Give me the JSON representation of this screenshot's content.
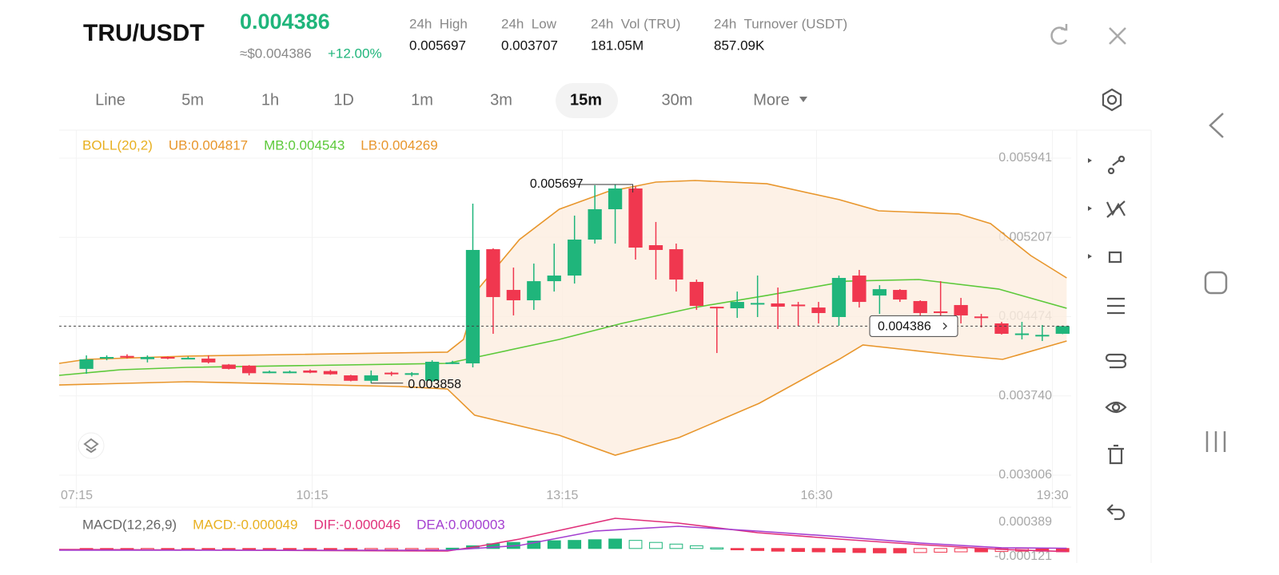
{
  "header": {
    "pair": "TRU/USDT",
    "price": "0.004386",
    "usd_price": "≈$0.004386",
    "change": "+12.00%",
    "stats": [
      {
        "label": "24h  High",
        "value": "0.005697"
      },
      {
        "label": "24h  Low",
        "value": "0.003707"
      },
      {
        "label": "24h  Vol (TRU)",
        "value": "181.05M"
      },
      {
        "label": "24h  Turnover (USDT)",
        "value": "857.09K"
      }
    ]
  },
  "timeframes": [
    {
      "label": "Line"
    },
    {
      "label": "5m"
    },
    {
      "label": "1h"
    },
    {
      "label": "1D"
    },
    {
      "label": "1m"
    },
    {
      "label": "3m"
    },
    {
      "label": "15m",
      "active": true
    },
    {
      "label": "30m"
    },
    {
      "label": "More"
    }
  ],
  "chart_data": [
    {
      "type": "candlestick",
      "title": "BOLL(20,2)",
      "title_color": "#e8b020",
      "up_color": "#1fb57b",
      "down_color": "#f0374f",
      "grid": true,
      "xlim": [
        -1.34,
        48.42
      ],
      "ylim": [
        0.00291,
        0.006185
      ],
      "xticks": [
        {
          "value": -0.5,
          "label": "07:15"
        },
        {
          "value": 11.1,
          "label": "10:15"
        },
        {
          "value": 23.4,
          "label": "13:15"
        },
        {
          "value": 35.9,
          "label": "16:30"
        },
        {
          "value": 47.5,
          "label": "19:30"
        }
      ],
      "yticks": [
        0.005941,
        0.005207,
        0.004474,
        {
          "value": 0.00374,
          "label": "0.003740"
        },
        0.003006
      ],
      "open": [
        0.00399,
        0.004085,
        0.00411,
        0.00408,
        0.0041,
        0.004088,
        0.004085,
        0.00403,
        0.00402,
        0.00396,
        0.00396,
        0.003975,
        0.00397,
        0.00393,
        0.00388,
        0.003955,
        0.003935,
        0.00388,
        0.00404,
        0.004041,
        0.005098,
        0.004721,
        0.004625,
        0.004802,
        0.004854,
        0.005187,
        0.005468,
        0.00566,
        0.005135,
        0.005098,
        0.004795,
        0.004565,
        0.004551,
        0.004592,
        0.004596,
        0.004585,
        0.004558,
        0.00447,
        0.004854,
        0.004669,
        0.004721,
        0.004618,
        0.004522,
        0.004581,
        0.004475,
        0.004411,
        0.004312,
        0.0043,
        0.004315
      ],
      "high": [
        0.004115,
        0.004115,
        0.004125,
        0.004115,
        0.004105,
        0.004105,
        0.004115,
        0.004035,
        0.004025,
        0.003975,
        0.003975,
        0.003985,
        0.00398,
        0.003935,
        0.003975,
        0.003965,
        0.00396,
        0.00407,
        0.004065,
        0.00552,
        0.005106,
        0.004928,
        0.004965,
        0.00515,
        0.005409,
        0.00569,
        0.005697,
        0.00568,
        0.00535,
        0.00515,
        0.004817,
        0.004565,
        0.004706,
        0.004854,
        0.004743,
        0.00461,
        0.00461,
        0.004854,
        0.004906,
        0.004765,
        0.004728,
        0.004625,
        0.004802,
        0.004647,
        0.004499,
        0.004425,
        0.004425,
        0.004396,
        0.00439
      ],
      "low": [
        0.003945,
        0.00407,
        0.004085,
        0.00405,
        0.00408,
        0.00408,
        0.00404,
        0.003985,
        0.00393,
        0.00395,
        0.00395,
        0.00395,
        0.003935,
        0.003875,
        0.003858,
        0.003925,
        0.00392,
        0.00387,
        0.004035,
        0.004004,
        0.004315,
        0.004485,
        0.004536,
        0.004706,
        0.00478,
        0.00515,
        0.00515,
        0.005002,
        0.004817,
        0.004706,
        0.004536,
        0.004137,
        0.004462,
        0.00447,
        0.004359,
        0.004388,
        0.004411,
        0.004388,
        0.004558,
        0.004499,
        0.00461,
        0.004485,
        0.004448,
        0.004411,
        0.004374,
        0.004308,
        0.004263,
        0.004248,
        0.004312
      ],
      "close": [
        0.004078,
        0.0041,
        0.004095,
        0.0041,
        0.004085,
        0.004092,
        0.00405,
        0.00399,
        0.00395,
        0.003965,
        0.003965,
        0.003955,
        0.00394,
        0.00388,
        0.00393,
        0.00394,
        0.00395,
        0.004056,
        0.00405,
        0.005091,
        0.004655,
        0.004625,
        0.004802,
        0.004854,
        0.005187,
        0.005468,
        0.00566,
        0.005113,
        0.005091,
        0.004817,
        0.004573,
        0.004558,
        0.00461,
        0.0046,
        0.004566,
        0.00458,
        0.004507,
        0.004832,
        0.00461,
        0.004728,
        0.004632,
        0.004507,
        0.004518,
        0.004485,
        0.004468,
        0.004315,
        0.004318,
        0.004305,
        0.004386
      ],
      "series": [
        {
          "name": "UB:0.004817",
          "color": "#e8962c",
          "x": [
            -1.34,
            0,
            4.95,
            17.75,
            18.54,
            19.32,
            21.29,
            23.25,
            25.61,
            28.0,
            29.93,
            33.46,
            37.0,
            38.96,
            42.89,
            44.46,
            46.43,
            48.2
          ],
          "values": [
            0.004041,
            0.004078,
            0.004108,
            0.004145,
            0.004263,
            0.004743,
            0.005187,
            0.005468,
            0.00563,
            0.005719,
            0.005734,
            0.005704,
            0.005557,
            0.005453,
            0.005424,
            0.005335,
            0.005039,
            0.004832
          ]
        },
        {
          "name": "MB:0.004543",
          "color": "#5cc93a",
          "x": [
            -1.34,
            1.66,
            4.95,
            17.75,
            23.25,
            26.32,
            29.93,
            33.46,
            37.39,
            40.93,
            44.85,
            48.2
          ],
          "values": [
            0.00393,
            0.003982,
            0.004004,
            0.004041,
            0.004263,
            0.004411,
            0.004559,
            0.00467,
            0.004802,
            0.004817,
            0.004729,
            0.004551
          ]
        },
        {
          "name": "LB:0.004269",
          "color": "#e8962c",
          "x": [
            -1.34,
            4.95,
            15.4,
            17.75,
            19.09,
            23.25,
            26.0,
            29.14,
            33.07,
            37.0,
            38.18,
            42.89,
            45.05,
            48.2
          ],
          "values": [
            0.003841,
            0.003871,
            0.003827,
            0.003804,
            0.003561,
            0.003376,
            0.003191,
            0.003354,
            0.003671,
            0.004078,
            0.004211,
            0.004115,
            0.004078,
            0.004248
          ]
        }
      ],
      "band_fill": "#fdeee0"
    },
    {
      "type": "macd",
      "title": "MACD(12,26,9)",
      "title_color": "#666666",
      "xlim": [
        -1.34,
        48.42
      ],
      "ylim": [
        -0.000216,
        0.000555
      ],
      "yticks": [
        0.000389,
        -0.000121
      ],
      "histogram": {
        "name": "MACD:-0.000049",
        "color": "#e8b020",
        "up_color": "#1fb57b",
        "down_color": "#f0374f",
        "values": [
          -1e-05,
          -1e-05,
          -1e-05,
          -8e-06,
          -8e-06,
          -8e-06,
          -1.2e-05,
          -1.5e-05,
          -1.8e-05,
          -1.8e-05,
          -1.8e-05,
          -1.8e-05,
          -1.8e-05,
          -2e-05,
          -1.8e-05,
          -1.5e-05,
          -1.2e-05,
          -5e-06,
          5e-06,
          4e-05,
          7e-05,
          9e-05,
          0.00011,
          0.000115,
          0.00012,
          0.00013,
          0.00014,
          0.00012,
          9e-05,
          6.5e-05,
          4e-05,
          1e-05,
          -2e-05,
          -3e-05,
          -4e-05,
          -4.5e-05,
          -5e-05,
          -5.5e-05,
          -6e-05,
          -6.5e-05,
          -6.5e-05,
          -6e-05,
          -5.5e-05,
          -5e-05,
          -5e-05,
          -4.5e-05,
          -4e-05,
          -4e-05,
          -4.9e-05
        ]
      },
      "series": [
        {
          "name": "DIF:-0.000046",
          "color": "#e0307a",
          "x": [
            -1.34,
            17.75,
            19.3,
            21.3,
            26.0,
            29.1,
            33.0,
            37.0,
            41.0,
            45.0,
            48.2
          ],
          "values": [
            -1.4e-05,
            -3.8e-05,
            3.3e-05,
            0.00014,
            0.000448,
            0.000377,
            0.000235,
            0.00014,
            5.7e-05,
            -1.4e-05,
            -4.6e-05
          ]
        },
        {
          "name": "DEA:0.000003",
          "color": "#a43fd0",
          "x": [
            -1.34,
            17.75,
            21.3,
            25.0,
            29.1,
            33.0,
            37.0,
            41.0,
            45.0,
            48.2
          ],
          "values": [
            -2.6e-05,
            -2.6e-05,
            4.5e-05,
            0.000259,
            0.00033,
            0.000259,
            0.000176,
            8.1e-05,
            1e-05,
            3e-06
          ]
        }
      ]
    }
  ]
}
